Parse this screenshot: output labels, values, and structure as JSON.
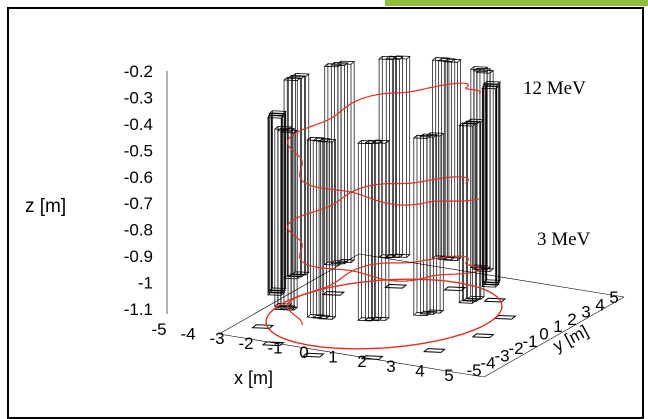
{
  "chart_data": {
    "type": "3d-line",
    "zlabel": "z [m]",
    "xlabel": "x [m]",
    "ylabel": "y [m]",
    "z_ticks": [
      "-0.2",
      "-0.3",
      "-0.4",
      "-0.5",
      "-0.6",
      "-0.7",
      "-0.8",
      "-0.9",
      "-1",
      "-1.1"
    ],
    "x_ticks": [
      "-5",
      "-4",
      "-3",
      "-2",
      "-1",
      "0",
      "1",
      "2",
      "3",
      "4",
      "5"
    ],
    "y_ticks": [
      "-5",
      "-4",
      "-3",
      "-2",
      "-1",
      "0",
      "1",
      "2",
      "3",
      "4",
      "5"
    ],
    "xlim": [
      -5,
      5
    ],
    "ylim": [
      -5,
      5
    ],
    "zlim": [
      -1.1,
      -0.2
    ],
    "annotations": [
      {
        "text": "12 MeV",
        "z": -0.28
      },
      {
        "text": "3 MeV",
        "z": -0.83
      }
    ],
    "detector_columns": {
      "count": 12,
      "radius_m": 4.2,
      "z_bottom": -0.95,
      "z_top": -0.2
    },
    "tracks": [
      {
        "label": "12 MeV",
        "z_start": -0.2,
        "z_end": -0.6,
        "orbits": 1,
        "color": "#e03020"
      },
      {
        "label": "3 MeV",
        "z_start": -0.6,
        "z_end": -1.05,
        "orbits": 1.5,
        "color": "#e03020"
      }
    ],
    "base_ring": {
      "radius_m": 4.6,
      "z": -1.05,
      "color": "#e03020"
    },
    "colors": {
      "track": "#e03020",
      "wire": "#000000",
      "accent": "#8cbe3c"
    }
  }
}
